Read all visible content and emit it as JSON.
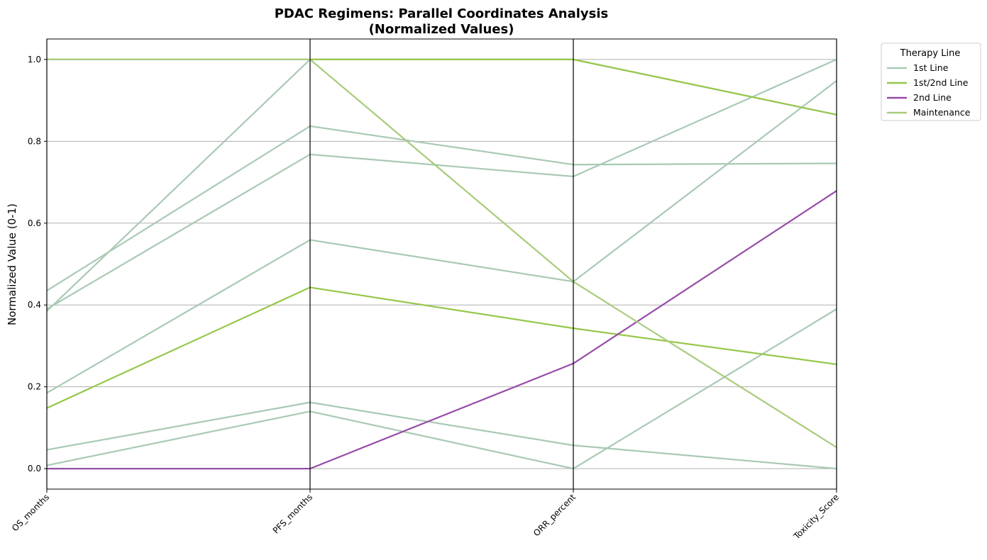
{
  "chart_data": {
    "type": "parallel_coordinates",
    "title": "PDAC Regimens: Parallel Coordinates Analysis",
    "subtitle": "(Normalized Values)",
    "ylabel": "Normalized Value (0-1)",
    "xlabel": "",
    "ylim": [
      -0.05,
      1.05
    ],
    "yticks": [
      "0.0",
      "0.2",
      "0.4",
      "0.6",
      "0.8",
      "1.0"
    ],
    "ytick_values": [
      0.0,
      0.2,
      0.4,
      0.6,
      0.8,
      1.0
    ],
    "axes": [
      "OS_months",
      "PFS_months",
      "ORR_percent",
      "Toxicity_Score"
    ],
    "grid": "horizontal",
    "legend": {
      "title": "Therapy Line",
      "placement": "outside-top-right",
      "entries": [
        {
          "name": "1st Line",
          "color": "#a9c9b4"
        },
        {
          "name": "1st/2nd Line",
          "color": "#96c74a"
        },
        {
          "name": "2nd Line",
          "color": "#964ca8"
        },
        {
          "name": "Maintenance",
          "color": "#a9cb7c"
        }
      ]
    },
    "series": [
      {
        "group": "1st Line",
        "values": [
          0.385,
          1.0,
          1.0,
          0.865
        ]
      },
      {
        "group": "1st Line",
        "values": [
          0.435,
          0.837,
          0.743,
          0.746
        ]
      },
      {
        "group": "1st Line",
        "values": [
          0.39,
          0.768,
          0.714,
          1.0
        ]
      },
      {
        "group": "1st Line",
        "values": [
          0.185,
          0.559,
          0.457,
          0.948
        ]
      },
      {
        "group": "1st Line",
        "values": [
          0.046,
          0.162,
          0.057,
          0.0
        ]
      },
      {
        "group": "1st Line",
        "values": [
          0.008,
          0.14,
          0.0,
          0.39
        ]
      },
      {
        "group": "1st/2nd Line",
        "values": [
          0.148,
          0.443,
          0.343,
          0.255
        ]
      },
      {
        "group": "1st/2nd Line",
        "values": [
          1.0,
          1.0,
          1.0,
          0.865
        ]
      },
      {
        "group": "2nd Line",
        "values": [
          0.0,
          0.0,
          0.257,
          0.679
        ]
      },
      {
        "group": "Maintenance",
        "values": [
          1.0,
          1.0,
          0.457,
          0.052
        ]
      }
    ]
  }
}
